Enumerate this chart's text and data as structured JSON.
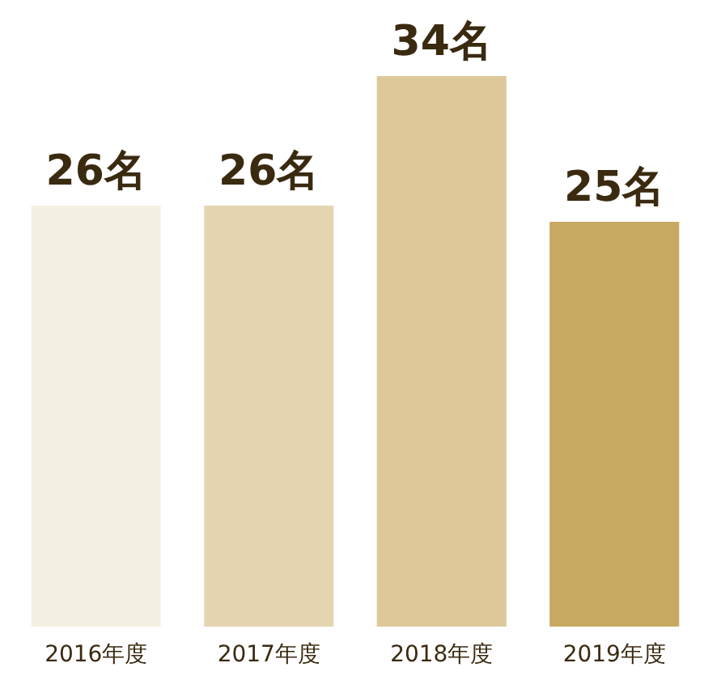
{
  "chart_data": {
    "type": "bar",
    "categories": [
      "2016年度",
      "2017年度",
      "2018年度",
      "2019年度"
    ],
    "values": [
      26,
      26,
      34,
      25
    ],
    "colors": [
      "#f5f0e4",
      "#e5d5b0",
      "#dec89a",
      "#c8a962"
    ],
    "value_labels": [
      "26名",
      "26名",
      "34名",
      "25名"
    ]
  }
}
